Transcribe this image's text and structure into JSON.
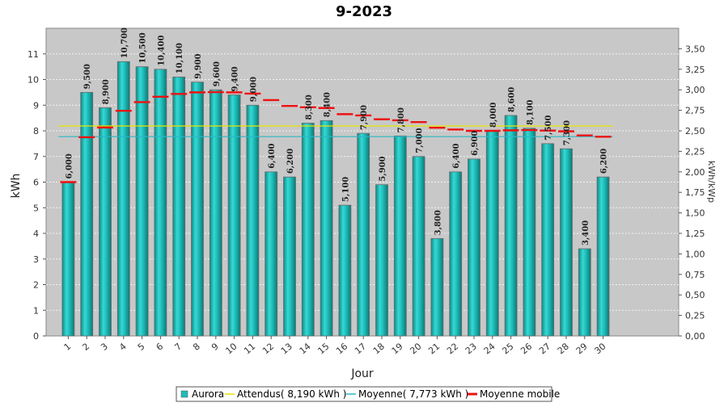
{
  "chart_data": {
    "type": "bar",
    "title": "9-2023",
    "xlabel": "Jour",
    "ylabel": "kWh",
    "ylabel_right": "kWh/kWp",
    "ylim": [
      0,
      12
    ],
    "ylim_right": [
      0,
      3.75
    ],
    "grid": true,
    "legend_position": "bottom",
    "categories": [
      "1",
      "2",
      "3",
      "4",
      "5",
      "6",
      "7",
      "8",
      "9",
      "10",
      "11",
      "12",
      "13",
      "14",
      "15",
      "16",
      "17",
      "18",
      "19",
      "20",
      "21",
      "22",
      "23",
      "24",
      "25",
      "26",
      "27",
      "28",
      "29",
      "30"
    ],
    "y_ticks": [
      "0",
      "1",
      "2",
      "3",
      "4",
      "5",
      "6",
      "7",
      "8",
      "9",
      "10",
      "11"
    ],
    "y_ticks_right": [
      "0,00",
      "0,25",
      "0,50",
      "0,75",
      "1,00",
      "1,25",
      "1,50",
      "1,75",
      "2,00",
      "2,25",
      "2,50",
      "2,75",
      "3,00",
      "3,25",
      "3,50"
    ],
    "series": [
      {
        "name": "Aurora",
        "kind": "bar",
        "color": "#1fbcb8",
        "values": [
          6.0,
          9.5,
          8.9,
          10.7,
          10.5,
          10.4,
          10.1,
          9.9,
          9.6,
          9.4,
          9.0,
          6.4,
          6.2,
          8.3,
          8.4,
          5.1,
          7.9,
          5.9,
          7.8,
          7.0,
          3.8,
          6.4,
          6.9,
          8.0,
          8.6,
          8.1,
          7.5,
          7.3,
          3.4,
          6.2
        ],
        "labels": [
          "6,000",
          "9,500",
          "8,900",
          "10,700",
          "10,500",
          "10,400",
          "10,100",
          "9,900",
          "9,600",
          "9,400",
          "9,000",
          "6,400",
          "6,200",
          "8,300",
          "8,400",
          "5,100",
          "7,900",
          "5,900",
          "7,800",
          "7,000",
          "3,800",
          "6,400",
          "6,900",
          "8,000",
          "8,600",
          "8,100",
          "7,500",
          "7,300",
          "3,400",
          "6,200"
        ]
      },
      {
        "name": "Attendus( 8,190 kWh )",
        "kind": "hline",
        "color": "#e6e600",
        "value": 8.19
      },
      {
        "name": "Moyenne( 7,773 kWh )",
        "kind": "hline",
        "color": "#2ab8c6",
        "value": 7.773
      },
      {
        "name": "Moyenne mobile",
        "kind": "step",
        "color": "#ee1111",
        "values": [
          6.0,
          7.75,
          8.13,
          8.78,
          9.12,
          9.33,
          9.44,
          9.5,
          9.51,
          9.5,
          9.45,
          9.2,
          8.97,
          8.92,
          8.89,
          8.65,
          8.6,
          8.45,
          8.41,
          8.34,
          8.12,
          8.05,
          8.0,
          8.0,
          8.02,
          8.03,
          8.01,
          7.98,
          7.82,
          7.77
        ]
      }
    ]
  }
}
